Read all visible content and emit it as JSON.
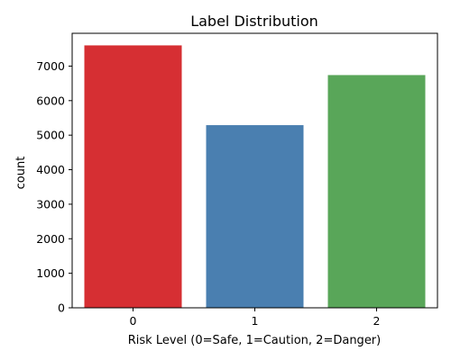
{
  "chart_data": {
    "type": "bar",
    "title": "Label Distribution",
    "xlabel": "Risk Level (0=Safe, 1=Caution, 2=Danger)",
    "ylabel": "count",
    "categories": [
      "0",
      "1",
      "2"
    ],
    "values": [
      7600,
      5290,
      6740
    ],
    "colors": [
      "#d62f33",
      "#4a7fb0",
      "#59a659"
    ],
    "ylim": [
      0,
      7950
    ],
    "yticks": [
      0,
      1000,
      2000,
      3000,
      4000,
      5000,
      6000,
      7000
    ],
    "grid": false,
    "legend": "none"
  }
}
